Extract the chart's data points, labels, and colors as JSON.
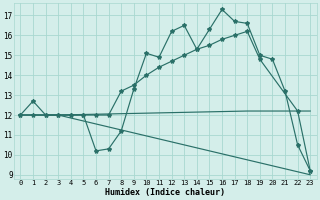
{
  "xlabel": "Humidex (Indice chaleur)",
  "xlim": [
    -0.5,
    23.5
  ],
  "ylim": [
    8.8,
    17.6
  ],
  "yticks": [
    9,
    10,
    11,
    12,
    13,
    14,
    15,
    16,
    17
  ],
  "xticks": [
    0,
    1,
    2,
    3,
    4,
    5,
    6,
    7,
    8,
    9,
    10,
    11,
    12,
    13,
    14,
    15,
    16,
    17,
    18,
    19,
    20,
    21,
    22,
    23
  ],
  "bg_color": "#d4eeea",
  "grid_color": "#a8d8d0",
  "line_color": "#2a7068",
  "line1_y": [
    12.0,
    12.7,
    12.0,
    12.0,
    12.0,
    12.0,
    10.2,
    10.3,
    11.2,
    13.3,
    15.1,
    14.9,
    16.2,
    16.5,
    15.3,
    16.3,
    17.3,
    16.7,
    16.6,
    15.0,
    14.8,
    13.2,
    10.5,
    9.2
  ],
  "line2_x": [
    0,
    1,
    2,
    3,
    4,
    5,
    6,
    7,
    8,
    9,
    10,
    11,
    12,
    13,
    14,
    15,
    16,
    17,
    18,
    19,
    22,
    23
  ],
  "line2_y": [
    12.0,
    12.0,
    12.0,
    12.0,
    12.0,
    12.0,
    12.0,
    12.0,
    13.2,
    13.5,
    14.0,
    14.4,
    14.7,
    15.0,
    15.3,
    15.5,
    15.8,
    16.0,
    16.2,
    14.8,
    12.2,
    9.2
  ],
  "line3_x": [
    0,
    1,
    2,
    3,
    18,
    19,
    22,
    23
  ],
  "line3_y": [
    12.0,
    12.0,
    12.0,
    12.0,
    12.2,
    12.2,
    12.2,
    12.2
  ],
  "line4_x": [
    0,
    1,
    2,
    3,
    23
  ],
  "line4_y": [
    12.0,
    12.0,
    12.0,
    12.0,
    9.0
  ]
}
